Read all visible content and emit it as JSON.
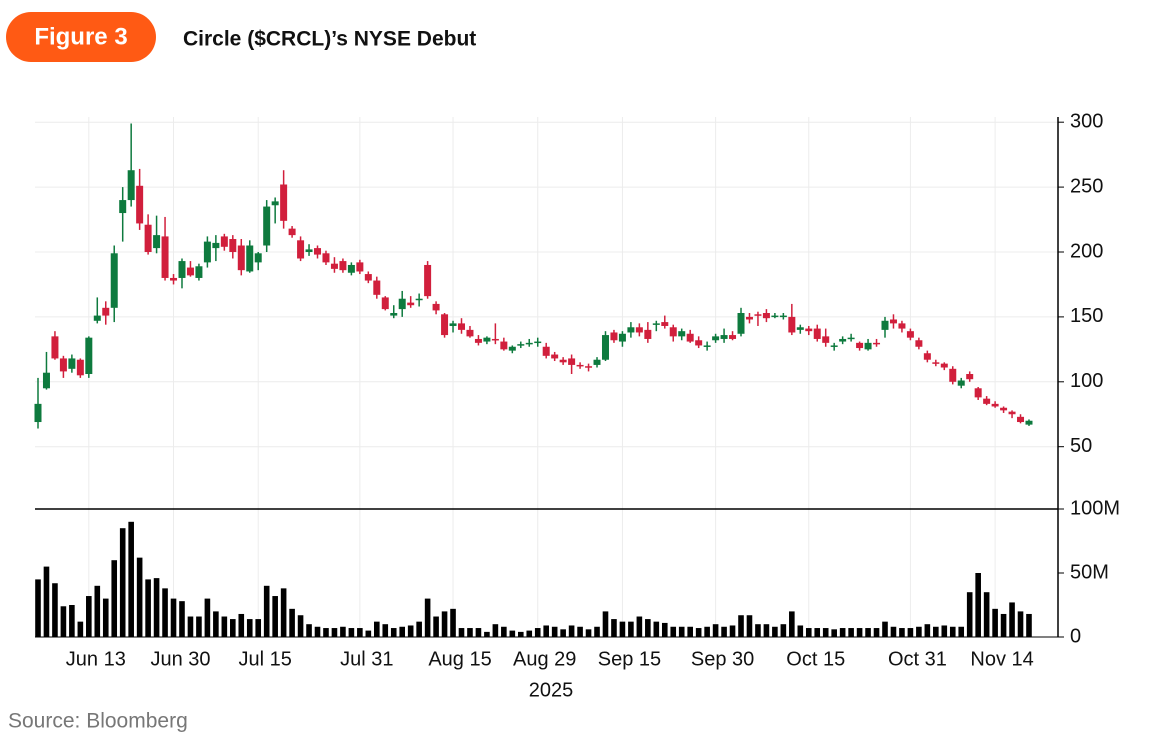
{
  "badge": "Figure 3",
  "source": "Source: Bloomberg",
  "chart_data": {
    "type": "candlestick",
    "title": "Circle ($CRCL)’s NYSE Debut",
    "xlabel": "2025",
    "x": [
      "2025-06-05",
      "2025-06-06",
      "2025-06-09",
      "2025-06-10",
      "2025-06-11",
      "2025-06-12",
      "2025-06-13",
      "2025-06-16",
      "2025-06-17",
      "2025-06-18",
      "2025-06-20",
      "2025-06-23",
      "2025-06-24",
      "2025-06-25",
      "2025-06-26",
      "2025-06-27",
      "2025-06-30",
      "2025-07-01",
      "2025-07-02",
      "2025-07-03",
      "2025-07-07",
      "2025-07-08",
      "2025-07-09",
      "2025-07-10",
      "2025-07-11",
      "2025-07-14",
      "2025-07-15",
      "2025-07-16",
      "2025-07-17",
      "2025-07-18",
      "2025-07-21",
      "2025-07-22",
      "2025-07-23",
      "2025-07-24",
      "2025-07-25",
      "2025-07-28",
      "2025-07-29",
      "2025-07-30",
      "2025-07-31",
      "2025-08-01",
      "2025-08-04",
      "2025-08-05",
      "2025-08-06",
      "2025-08-07",
      "2025-08-08",
      "2025-08-11",
      "2025-08-12",
      "2025-08-13",
      "2025-08-14",
      "2025-08-15",
      "2025-08-18",
      "2025-08-19",
      "2025-08-20",
      "2025-08-21",
      "2025-08-22",
      "2025-08-25",
      "2025-08-26",
      "2025-08-27",
      "2025-08-28",
      "2025-08-29",
      "2025-09-02",
      "2025-09-03",
      "2025-09-04",
      "2025-09-05",
      "2025-09-08",
      "2025-09-09",
      "2025-09-10",
      "2025-09-11",
      "2025-09-12",
      "2025-09-15",
      "2025-09-16",
      "2025-09-17",
      "2025-09-18",
      "2025-09-19",
      "2025-09-22",
      "2025-09-23",
      "2025-09-24",
      "2025-09-25",
      "2025-09-26",
      "2025-09-29",
      "2025-09-30",
      "2025-10-01",
      "2025-10-02",
      "2025-10-03",
      "2025-10-06",
      "2025-10-07",
      "2025-10-08",
      "2025-10-09",
      "2025-10-10",
      "2025-10-13",
      "2025-10-14",
      "2025-10-15",
      "2025-10-16",
      "2025-10-17",
      "2025-10-20",
      "2025-10-21",
      "2025-10-22",
      "2025-10-23",
      "2025-10-24",
      "2025-10-27",
      "2025-10-28",
      "2025-10-29",
      "2025-10-30",
      "2025-10-31",
      "2025-11-03",
      "2025-11-04",
      "2025-11-05",
      "2025-11-06",
      "2025-11-07",
      "2025-11-10",
      "2025-11-11",
      "2025-11-12",
      "2025-11-13",
      "2025-11-14",
      "2025-11-17",
      "2025-11-18",
      "2025-11-19",
      "2025-11-20"
    ],
    "open": [
      69,
      95,
      135,
      118,
      110,
      117,
      106,
      147,
      157,
      157,
      230,
      240,
      251,
      221,
      203,
      212,
      180,
      180,
      188,
      180,
      192,
      203,
      212,
      210,
      205,
      185,
      192,
      205,
      236,
      252,
      218,
      209,
      200,
      203,
      199,
      191,
      193,
      184,
      192,
      183,
      178,
      165,
      151,
      156,
      161,
      163,
      190,
      160,
      152,
      143,
      145,
      140,
      133,
      131,
      133,
      131,
      124,
      128,
      129,
      131,
      127,
      121,
      117,
      118,
      113,
      112,
      113,
      117,
      138,
      131,
      138,
      142,
      140,
      144,
      146,
      142,
      135,
      137,
      132,
      127,
      132,
      133,
      136,
      137,
      150,
      152,
      153,
      150,
      150,
      150,
      140,
      141,
      141,
      135,
      127,
      131,
      133,
      130,
      125,
      130,
      140,
      148,
      145,
      139,
      132,
      122,
      115,
      114,
      110,
      97,
      106,
      95,
      87,
      83,
      80,
      77,
      73,
      67
    ],
    "high": [
      103,
      123,
      139,
      120,
      121,
      118,
      135,
      165,
      162,
      205,
      250,
      299,
      264,
      229,
      228,
      227,
      183,
      195,
      193,
      191,
      212,
      213,
      214,
      213,
      210,
      209,
      200,
      240,
      242,
      263,
      220,
      212,
      206,
      205,
      201,
      196,
      195,
      192,
      194,
      185,
      181,
      166,
      159,
      170,
      166,
      168,
      193,
      162,
      153,
      147,
      149,
      143,
      136,
      135,
      145,
      134,
      128,
      131,
      133,
      134,
      130,
      123,
      119,
      121,
      115,
      114,
      119,
      139,
      140,
      139,
      146,
      145,
      146,
      147,
      151,
      144,
      141,
      140,
      135,
      131,
      137,
      141,
      139,
      157,
      153,
      154,
      156,
      153,
      153,
      160,
      144,
      143,
      144,
      141,
      130,
      135,
      137,
      131,
      133,
      133,
      150,
      152,
      147,
      141,
      134,
      124,
      117,
      115,
      112,
      103,
      108,
      96,
      89,
      85,
      81,
      78,
      75,
      71
    ],
    "low": [
      64,
      94,
      117,
      103,
      107,
      103,
      103,
      145,
      144,
      146,
      208,
      235,
      217,
      198,
      199,
      178,
      175,
      172,
      181,
      178,
      188,
      193,
      201,
      195,
      182,
      184,
      186,
      200,
      222,
      218,
      211,
      193,
      197,
      195,
      190,
      184,
      184,
      182,
      183,
      176,
      164,
      155,
      149,
      150,
      157,
      158,
      164,
      152,
      134,
      138,
      137,
      134,
      128,
      129,
      129,
      124,
      122,
      126,
      127,
      127,
      118,
      116,
      113,
      106,
      110,
      108,
      111,
      116,
      130,
      127,
      134,
      135,
      130,
      139,
      141,
      131,
      132,
      130,
      126,
      124,
      130,
      130,
      132,
      135,
      145,
      143,
      146,
      149,
      148,
      136,
      137,
      136,
      131,
      127,
      124,
      129,
      131,
      124,
      124,
      127,
      134,
      141,
      138,
      132,
      125,
      115,
      112,
      109,
      98,
      95,
      100,
      86,
      82,
      80,
      76,
      72,
      68,
      66
    ],
    "close": [
      83,
      107,
      118,
      108,
      118,
      105,
      134,
      151,
      151,
      199,
      240,
      263,
      222,
      200,
      213,
      180,
      178,
      193,
      182,
      189,
      208,
      207,
      204,
      200,
      186,
      205,
      199,
      235,
      239,
      224,
      213,
      195,
      202,
      198,
      192,
      187,
      186,
      190,
      185,
      178,
      167,
      156,
      153,
      164,
      159,
      164,
      166,
      155,
      136,
      145,
      140,
      135,
      130,
      134,
      132,
      125,
      127,
      129,
      130,
      131,
      120,
      118,
      115,
      113,
      112,
      111,
      117,
      136,
      132,
      137,
      142,
      138,
      133,
      145,
      143,
      135,
      139,
      131,
      128,
      128,
      135,
      136,
      133,
      153,
      148,
      151,
      149,
      151,
      151,
      138,
      142,
      139,
      133,
      130,
      128,
      133,
      134,
      126,
      130,
      129,
      147,
      145,
      141,
      134,
      127,
      117,
      114,
      111,
      100,
      101,
      102,
      88,
      83,
      81,
      78,
      75,
      69,
      70
    ],
    "volume": [
      45000000,
      55000000,
      42000000,
      24000000,
      25000000,
      12000000,
      32000000,
      40000000,
      30000000,
      60000000,
      85000000,
      90000000,
      62000000,
      45000000,
      46000000,
      38000000,
      30000000,
      28000000,
      16000000,
      16000000,
      30000000,
      20000000,
      16000000,
      14000000,
      18000000,
      14000000,
      14000000,
      40000000,
      32000000,
      38000000,
      22000000,
      17000000,
      10000000,
      8000000,
      7000000,
      7000000,
      8000000,
      7000000,
      7000000,
      5000000,
      12000000,
      10000000,
      7000000,
      8000000,
      9000000,
      12000000,
      30000000,
      16000000,
      20000000,
      22000000,
      7000000,
      7000000,
      7000000,
      4000000,
      10000000,
      8000000,
      5000000,
      4000000,
      5000000,
      7000000,
      9000000,
      8000000,
      6000000,
      9000000,
      8000000,
      6000000,
      8000000,
      20000000,
      14000000,
      12000000,
      12000000,
      16000000,
      14000000,
      12000000,
      11000000,
      8000000,
      8000000,
      8000000,
      7000000,
      8000000,
      10000000,
      8000000,
      9000000,
      17000000,
      17000000,
      10000000,
      10000000,
      8000000,
      10000000,
      20000000,
      9000000,
      7000000,
      7000000,
      7000000,
      6000000,
      7000000,
      7000000,
      7000000,
      7000000,
      7000000,
      12000000,
      8000000,
      7000000,
      7000000,
      8000000,
      10000000,
      8000000,
      9000000,
      8000000,
      8000000,
      35000000,
      50000000,
      35000000,
      22000000,
      18000000,
      27000000,
      20000000,
      18000000
    ],
    "up_color": "#0e7a3e",
    "down_color": "#d11f3c",
    "volume_color": "#000000",
    "ylim": [
      2,
      304
    ],
    "yticks": [
      50,
      100,
      150,
      200,
      250,
      300
    ],
    "y2lim": [
      0,
      100000000
    ],
    "y2ticks": [
      0,
      {
        "value": 50000000,
        "label": "50M"
      },
      {
        "value": 100000000,
        "label": "100M"
      }
    ],
    "xticks": [
      {
        "value": "2025-06-13",
        "label": "Jun 13"
      },
      {
        "value": "2025-06-30",
        "label": "Jun 30"
      },
      {
        "value": "2025-07-15",
        "label": "Jul 15"
      },
      {
        "value": "2025-07-31",
        "label": "Jul 31"
      },
      {
        "value": "2025-08-15",
        "label": "Aug 15"
      },
      {
        "value": "2025-08-29",
        "label": "Aug 29"
      },
      {
        "value": "2025-09-15",
        "label": "Sep 15"
      },
      {
        "value": "2025-09-30",
        "label": "Sep 30"
      },
      {
        "value": "2025-10-15",
        "label": "Oct 15"
      },
      {
        "value": "2025-10-31",
        "label": "Oct 31"
      },
      {
        "value": "2025-11-14",
        "label": "Nov 14"
      }
    ],
    "grid": true
  }
}
